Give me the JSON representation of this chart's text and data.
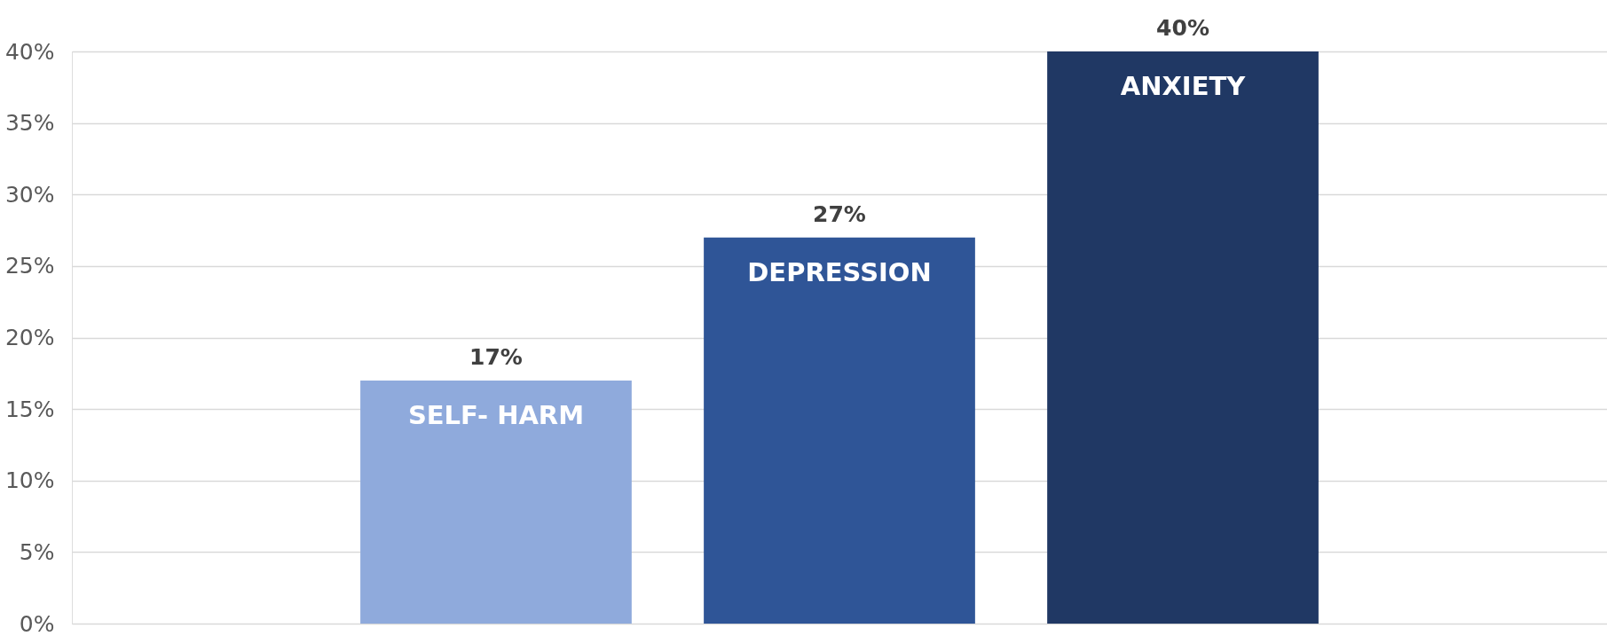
{
  "chart_data": {
    "type": "bar",
    "categories": [
      "SELF- HARM",
      "DEPRESSION",
      "ANXIETY"
    ],
    "values": [
      17,
      27,
      40
    ],
    "colors": [
      "#8faadc",
      "#2f5597",
      "#203864"
    ],
    "value_labels": [
      "17%",
      "27%",
      "40%"
    ],
    "ylim": [
      0,
      40
    ],
    "yticks": [
      {
        "value": 0,
        "label": "0%"
      },
      {
        "value": 5,
        "label": "5%"
      },
      {
        "value": 10,
        "label": "10%"
      },
      {
        "value": 15,
        "label": "15%"
      },
      {
        "value": 20,
        "label": "20%"
      },
      {
        "value": 25,
        "label": "25%"
      },
      {
        "value": 30,
        "label": "30%"
      },
      {
        "value": 35,
        "label": "35%"
      },
      {
        "value": 40,
        "label": "40%"
      }
    ],
    "grid": "y",
    "tick_labels": "y",
    "legend": false
  }
}
